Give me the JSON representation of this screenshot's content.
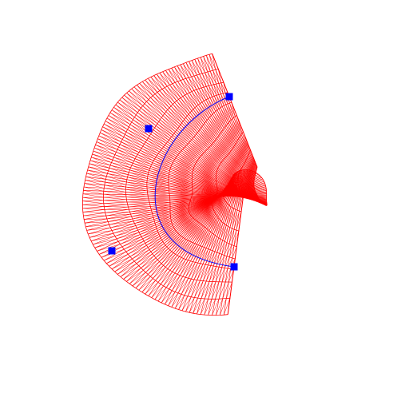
{
  "diagram": {
    "background": "#ffffff",
    "colors": {
      "mesh": "#ff0000",
      "spine": "#0000ff",
      "control_point": "#0000ff"
    },
    "control_points": [
      {
        "id": "p1"
      },
      {
        "id": "p2"
      },
      {
        "id": "p3"
      },
      {
        "id": "p4"
      }
    ]
  }
}
